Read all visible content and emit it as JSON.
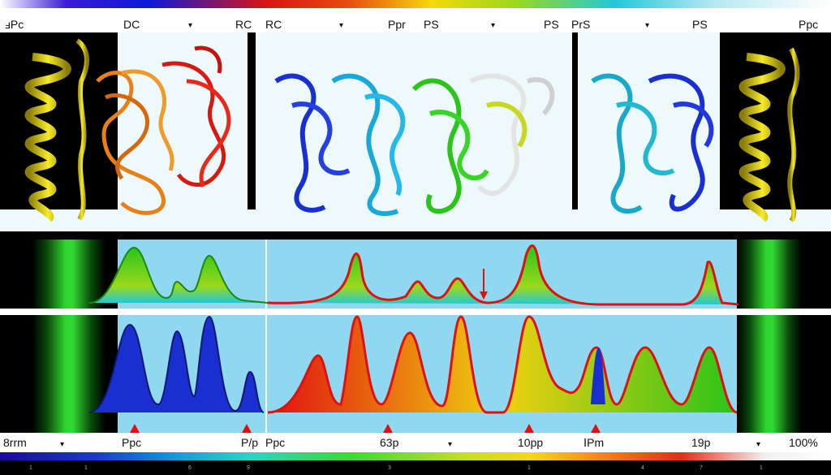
{
  "header": {
    "labels": [
      "ⅎPc",
      "DC",
      "RC",
      "RC",
      "Ppr",
      "PS",
      "PS",
      "PrS",
      "PS",
      "Ppc"
    ]
  },
  "footer": {
    "labels": [
      "8rrm",
      "Ppc",
      "P/p",
      "Ppc",
      "63p",
      "10pp",
      "ⅠPm",
      "19p",
      "100%"
    ],
    "scale": [
      "1",
      "1",
      "6",
      "9",
      "3",
      "1",
      "4",
      "7",
      "1"
    ]
  },
  "colors": {
    "yellow_helix": "#f2e21a",
    "orange_protein": "#e8801a",
    "red_protein": "#d61a12",
    "blue_protein": "#1a2fd0",
    "cyan_protein": "#1aa8d8",
    "green_protein": "#2ac41a",
    "light_bg": "#eef9fb",
    "sky_bg": "#8fd8ef",
    "marker_red": "#e01010"
  },
  "icons": {
    "triangle_marker": "▲",
    "arrow_down": "↓"
  }
}
